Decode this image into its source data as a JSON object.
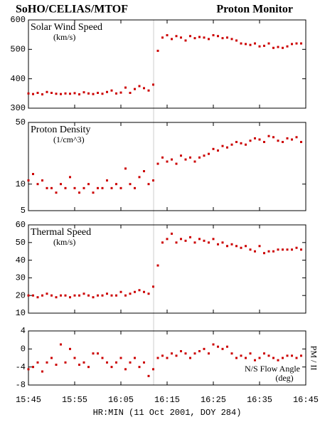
{
  "header": {
    "left": "SoHO/CELIAS/MTOF",
    "right": "Proton Monitor"
  },
  "chart_data": [
    {
      "type": "scatter",
      "title": "Solar Wind Speed",
      "unit": "(km/s)",
      "color": "#cc0000",
      "xlim": [
        945,
        1005
      ],
      "ylim": [
        300,
        600
      ],
      "yticks": [
        300,
        400,
        500,
        600
      ],
      "x": [
        945,
        946,
        947,
        948,
        949,
        950,
        951,
        952,
        953,
        954,
        955,
        956,
        957,
        958,
        959,
        960,
        961,
        962,
        963,
        964,
        965,
        966,
        967,
        968,
        969,
        970,
        971,
        972,
        973,
        974,
        975,
        976,
        977,
        978,
        979,
        980,
        981,
        982,
        983,
        984,
        985,
        986,
        987,
        988,
        989,
        990,
        991,
        992,
        993,
        994,
        995,
        996,
        997,
        998,
        999,
        1000,
        1001,
        1002,
        1003,
        1004
      ],
      "values": [
        350,
        348,
        352,
        347,
        355,
        352,
        349,
        348,
        350,
        349,
        351,
        347,
        354,
        350,
        348,
        352,
        349,
        355,
        360,
        350,
        353,
        370,
        352,
        365,
        375,
        368,
        360,
        380,
        495,
        540,
        548,
        535,
        545,
        540,
        530,
        545,
        538,
        542,
        540,
        535,
        548,
        545,
        538,
        540,
        535,
        530,
        520,
        518,
        515,
        520,
        510,
        512,
        520,
        505,
        508,
        505,
        510,
        518,
        520,
        520
      ]
    },
    {
      "type": "scatter",
      "title": "Proton Density",
      "unit": "(1/cm^3)",
      "color": "#cc0000",
      "log": true,
      "xlim": [
        945,
        1005
      ],
      "ylim": [
        5,
        50
      ],
      "yticks": [
        5,
        10,
        50
      ],
      "x": [
        945,
        946,
        947,
        948,
        949,
        950,
        951,
        952,
        953,
        954,
        955,
        956,
        957,
        958,
        959,
        960,
        961,
        962,
        963,
        964,
        965,
        966,
        967,
        968,
        969,
        970,
        971,
        972,
        973,
        974,
        975,
        976,
        977,
        978,
        979,
        980,
        981,
        982,
        983,
        984,
        985,
        986,
        987,
        988,
        989,
        990,
        991,
        992,
        993,
        994,
        995,
        996,
        997,
        998,
        999,
        1000,
        1001,
        1002,
        1003,
        1004
      ],
      "values": [
        11,
        13,
        10,
        11,
        9,
        9,
        8,
        10,
        9,
        12,
        9,
        8,
        9,
        10,
        8,
        9,
        9,
        11,
        9,
        10,
        9,
        15,
        10,
        9,
        12,
        14,
        10,
        11,
        17,
        20,
        18,
        19,
        17,
        21,
        19,
        20,
        18,
        20,
        21,
        22,
        25,
        24,
        27,
        26,
        28,
        30,
        29,
        28,
        31,
        33,
        32,
        30,
        35,
        34,
        31,
        30,
        33,
        32,
        34,
        30
      ]
    },
    {
      "type": "scatter",
      "title": "Thermal Speed",
      "unit": "(km/s)",
      "color": "#cc0000",
      "xlim": [
        945,
        1005
      ],
      "ylim": [
        10,
        60
      ],
      "yticks": [
        10,
        20,
        30,
        40,
        50,
        60
      ],
      "x": [
        945,
        946,
        947,
        948,
        949,
        950,
        951,
        952,
        953,
        954,
        955,
        956,
        957,
        958,
        959,
        960,
        961,
        962,
        963,
        964,
        965,
        966,
        967,
        968,
        969,
        970,
        971,
        972,
        973,
        974,
        975,
        976,
        977,
        978,
        979,
        980,
        981,
        982,
        983,
        984,
        985,
        986,
        987,
        988,
        989,
        990,
        991,
        992,
        993,
        994,
        995,
        996,
        997,
        998,
        999,
        1000,
        1001,
        1002,
        1003,
        1004
      ],
      "values": [
        20,
        20,
        19,
        20,
        21,
        20,
        19,
        20,
        20,
        19,
        20,
        20,
        21,
        20,
        19,
        20,
        20,
        21,
        20,
        20,
        22,
        20,
        21,
        22,
        23,
        22,
        21,
        25,
        37,
        50,
        52,
        55,
        50,
        52,
        51,
        53,
        50,
        52,
        51,
        50,
        52,
        49,
        50,
        48,
        49,
        48,
        47,
        48,
        46,
        45,
        48,
        44,
        45,
        45,
        46,
        46,
        46,
        46,
        47,
        46
      ]
    },
    {
      "type": "scatter",
      "title": "N/S Flow Angle",
      "unit": "(deg)",
      "side_label": "PM / II",
      "color": "#cc0000",
      "x_label": "HR:MIN (11 Oct 2001, DOY 284)",
      "xlim": [
        945,
        1005
      ],
      "ylim": [
        -8,
        4
      ],
      "yticks": [
        -8,
        -4,
        0,
        4
      ],
      "xticks": [
        {
          "value": 945,
          "label": "15:45"
        },
        {
          "value": 955,
          "label": "15:55"
        },
        {
          "value": 965,
          "label": "16:05"
        },
        {
          "value": 975,
          "label": "16:15"
        },
        {
          "value": 985,
          "label": "16:25"
        },
        {
          "value": 995,
          "label": "16:35"
        },
        {
          "value": 1005,
          "label": "16:45"
        }
      ],
      "x": [
        945,
        946,
        947,
        948,
        949,
        950,
        951,
        952,
        953,
        954,
        955,
        956,
        957,
        958,
        959,
        960,
        961,
        962,
        963,
        964,
        965,
        966,
        967,
        968,
        969,
        970,
        971,
        972,
        973,
        974,
        975,
        976,
        977,
        978,
        979,
        980,
        981,
        982,
        983,
        984,
        985,
        986,
        987,
        988,
        989,
        990,
        991,
        992,
        993,
        994,
        995,
        996,
        997,
        998,
        999,
        1000,
        1001,
        1002,
        1003,
        1004
      ],
      "values": [
        -4.5,
        -4,
        -3,
        -5,
        -3,
        -2,
        -3.5,
        1,
        -3,
        0,
        -2,
        -3.5,
        -3,
        -4,
        -1,
        -1,
        -2,
        -3,
        -4,
        -3,
        -2,
        -4.5,
        -3,
        -2,
        -4,
        -3,
        -6,
        -4.5,
        -2,
        -1.5,
        -2,
        -1,
        -1.5,
        -0.5,
        -1,
        -2,
        -1,
        -0.5,
        0,
        -1,
        1,
        0.5,
        0,
        0.5,
        -1,
        -2,
        -1.5,
        -2,
        -1,
        -2.5,
        -2,
        -1,
        -1.5,
        -2,
        -2.5,
        -2,
        -1.5,
        -1.5,
        -2,
        -1.5
      ]
    }
  ]
}
